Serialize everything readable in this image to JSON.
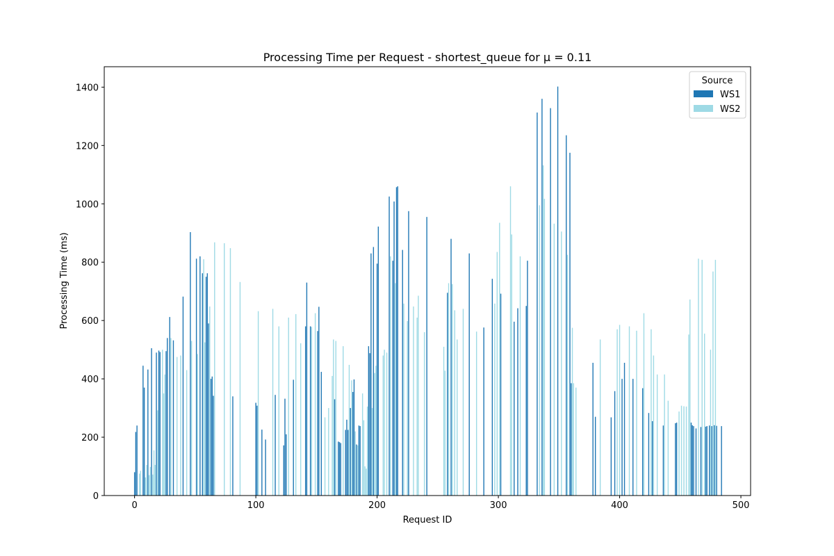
{
  "chart_data": {
    "type": "bar",
    "title": "Processing Time per Request - shortest_queue for μ = 0.11",
    "xlabel": "Request ID",
    "ylabel": "Processing Time (ms)",
    "xlim": [
      -25,
      508
    ],
    "ylim": [
      0,
      1470
    ],
    "xticks": [
      0,
      100,
      200,
      300,
      400,
      500
    ],
    "yticks": [
      0,
      200,
      400,
      600,
      800,
      1000,
      1200,
      1400
    ],
    "grid": false,
    "legend": {
      "title": "Source",
      "position": "top-right"
    },
    "colors": {
      "WS1": "#1f77b4",
      "WS2": "#9edae5"
    },
    "series": [
      {
        "name": "WS1",
        "x": [
          0,
          1,
          2,
          7,
          8,
          11,
          14,
          18,
          20,
          21,
          26,
          27,
          29,
          32,
          40,
          46,
          51,
          54,
          56,
          59,
          60,
          61,
          63,
          64,
          65,
          81,
          100,
          101,
          105,
          108,
          116,
          123,
          124,
          125,
          131,
          141,
          142,
          145,
          151,
          152,
          154,
          165,
          168,
          169,
          170,
          174,
          175,
          176,
          178,
          180,
          181,
          183,
          185,
          186,
          193,
          194,
          195,
          197,
          200,
          201,
          210,
          213,
          214,
          216,
          217,
          221,
          226,
          241,
          258,
          261,
          276,
          288,
          295,
          302,
          313,
          316,
          323,
          324,
          332,
          336,
          343,
          349,
          356,
          359,
          360,
          378,
          380,
          393,
          396,
          402,
          404,
          411,
          419,
          424,
          427,
          436,
          446,
          447,
          459,
          460,
          461,
          463,
          467,
          471,
          472,
          474,
          476,
          478,
          480,
          484
        ],
        "values": [
          80,
          218,
          240,
          445,
          370,
          432,
          505,
          490,
          497,
          492,
          495,
          540,
          612,
          532,
          682,
          903,
          812,
          820,
          762,
          750,
          762,
          590,
          400,
          408,
          342,
          340,
          318,
          308,
          226,
          192,
          345,
          172,
          332,
          210,
          397,
          580,
          730,
          580,
          564,
          647,
          424,
          330,
          185,
          183,
          180,
          225,
          260,
          225,
          300,
          355,
          398,
          175,
          240,
          238,
          512,
          488,
          830,
          852,
          795,
          922,
          1025,
          805,
          1008,
          1057,
          1060,
          842,
          975,
          955,
          695,
          880,
          830,
          576,
          743,
          692,
          596,
          642,
          650,
          805,
          1313,
          1360,
          1328,
          1402,
          1235,
          1175,
          385,
          455,
          270,
          268,
          358,
          400,
          455,
          400,
          368,
          283,
          255,
          240,
          248,
          250,
          250,
          241,
          238,
          230,
          235,
          236,
          238,
          240,
          238,
          241,
          239,
          238
        ]
      },
      {
        "name": "WS2",
        "x": [
          4,
          5,
          9,
          10,
          12,
          13,
          15,
          16,
          17,
          19,
          23,
          24,
          25,
          30,
          35,
          38,
          43,
          47,
          52,
          57,
          58,
          62,
          66,
          74,
          79,
          87,
          102,
          114,
          119,
          127,
          133,
          137,
          146,
          149,
          157,
          160,
          163,
          164,
          166,
          172,
          177,
          179,
          182,
          184,
          188,
          189,
          190,
          191,
          192,
          196,
          198,
          199,
          205,
          206,
          208,
          211,
          215,
          222,
          225,
          230,
          233,
          234,
          239,
          255,
          256,
          259,
          262,
          264,
          266,
          271,
          282,
          297,
          299,
          301,
          310,
          311,
          318,
          334,
          337,
          338,
          346,
          352,
          357,
          361,
          362,
          364,
          384,
          398,
          400,
          408,
          414,
          420,
          426,
          428,
          431,
          437,
          440,
          449,
          451,
          453,
          455,
          457,
          458,
          465,
          468,
          470,
          475,
          477,
          479
        ],
        "values": [
          75,
          85,
          62,
          105,
          70,
          98,
          72,
          155,
          105,
          292,
          500,
          350,
          415,
          540,
          475,
          480,
          430,
          530,
          485,
          810,
          525,
          648,
          868,
          865,
          848,
          732,
          632,
          640,
          580,
          610,
          622,
          522,
          578,
          625,
          268,
          300,
          410,
          535,
          530,
          512,
          448,
          395,
          220,
          172,
          350,
          258,
          100,
          92,
          305,
          300,
          420,
          445,
          480,
          500,
          490,
          820,
          728,
          658,
          598,
          648,
          610,
          685,
          560,
          510,
          428,
          728,
          725,
          635,
          535,
          640,
          562,
          658,
          835,
          935,
          1060,
          895,
          820,
          995,
          1132,
          1017,
          932,
          905,
          825,
          575,
          385,
          370,
          535,
          570,
          585,
          580,
          565,
          625,
          570,
          480,
          415,
          415,
          325,
          288,
          308,
          306,
          305,
          552,
          672,
          812,
          808,
          555,
          500,
          768,
          808
        ]
      }
    ]
  }
}
